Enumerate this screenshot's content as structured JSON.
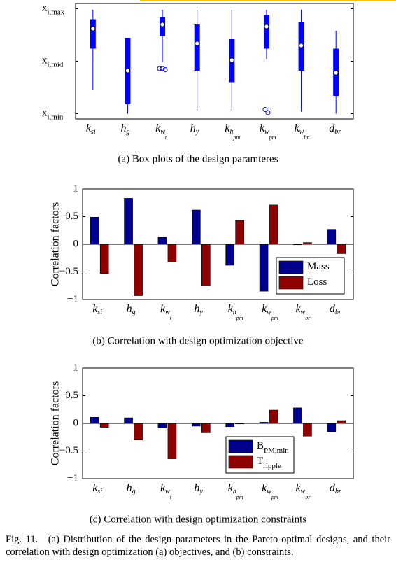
{
  "chart_data": [
    {
      "type": "box",
      "categories": [
        "k",
        "h",
        "k",
        "h",
        "k",
        "k",
        "k",
        "d"
      ],
      "category_subscripts": [
        "si",
        "g",
        "w",
        "y",
        "h",
        "w",
        "w",
        "br"
      ],
      "category_subsubscripts": [
        null,
        null,
        "t",
        null,
        "pm",
        "pm",
        "br",
        null
      ],
      "caption": "(a) Box plots of the design paramteres",
      "color": "#0000ff",
      "boxes": [
        {
          "whislo": 0.23,
          "q1": 0.62,
          "med": 0.81,
          "q3": 0.9,
          "whishi": 0.99,
          "fliers": []
        },
        {
          "whislo": 0,
          "q1": 0.09,
          "med": 0.41,
          "q3": 0.72,
          "whishi": 0.72,
          "fliers": []
        },
        {
          "whislo": 0.49,
          "q1": 0.74,
          "med": 0.85,
          "q3": 0.92,
          "whishi": 0.99,
          "fliers": [
            0.43,
            0.43,
            0.42
          ]
        },
        {
          "whislo": 0.03,
          "q1": 0.41,
          "med": 0.67,
          "q3": 0.85,
          "whishi": 0.99,
          "fliers": []
        },
        {
          "whislo": 0.03,
          "q1": 0.3,
          "med": 0.51,
          "q3": 0.71,
          "whishi": 0.99,
          "fliers": []
        },
        {
          "whislo": 0.52,
          "q1": 0.62,
          "med": 0.83,
          "q3": 0.94,
          "whishi": 0.99,
          "fliers": [
            0.04,
            0.01
          ]
        },
        {
          "whislo": 0.02,
          "q1": 0.41,
          "med": 0.65,
          "q3": 0.87,
          "whishi": 0.99,
          "fliers": []
        },
        {
          "whislo": 0,
          "q1": 0.17,
          "med": 0.39,
          "q3": 0.62,
          "whishi": 0.79,
          "fliers": []
        }
      ],
      "ylim": [
        -0.05,
        1.05
      ],
      "yticks": [
        {
          "value": 0,
          "label": "x"
        },
        {
          "value": 0.5,
          "label": "x"
        },
        {
          "value": 1,
          "label": "x"
        }
      ],
      "ytick_subscripts": [
        "i,min",
        "i,mid",
        "i,max"
      ]
    },
    {
      "type": "bar",
      "categories": [
        "k",
        "h",
        "k",
        "h",
        "k",
        "k",
        "k",
        "d"
      ],
      "category_subscripts": [
        "si",
        "g",
        "w",
        "y",
        "h",
        "w",
        "w",
        "br"
      ],
      "category_subsubscripts": [
        null,
        null,
        "t",
        null,
        "pm",
        "pm",
        "br",
        null
      ],
      "caption": "(b) Correlation with design optimization objective",
      "y_label": "Correlation factors",
      "series": [
        {
          "name": "Mass",
          "color": "#00008f",
          "values": [
            0.49,
            0.83,
            0.13,
            0.62,
            -0.38,
            -0.85,
            -0.01,
            0.27
          ]
        },
        {
          "name": "Loss",
          "color": "#8f0000",
          "values": [
            -0.53,
            -0.93,
            -0.32,
            -0.75,
            0.43,
            0.71,
            0.03,
            -0.17
          ]
        }
      ],
      "ylim": [
        -1,
        1
      ],
      "yticks": [
        {
          "value": -1,
          "label": "−1"
        },
        {
          "value": -0.5,
          "label": "−0.5"
        },
        0,
        0.5,
        1
      ],
      "legend": "lower right"
    },
    {
      "type": "bar",
      "categories": [
        "k",
        "h",
        "k",
        "h",
        "k",
        "k",
        "k",
        "d"
      ],
      "category_subscripts": [
        "si",
        "g",
        "w",
        "y",
        "h",
        "w",
        "w",
        "br"
      ],
      "category_subsubscripts": [
        null,
        null,
        "t",
        null,
        "pm",
        "pm",
        "br",
        null
      ],
      "caption": "(c) Correlation with design optimization constraints",
      "y_label": "Correlation factors",
      "series": [
        {
          "name": "B",
          "name_sub": "PM,min",
          "color": "#00008f",
          "values": [
            0.11,
            0.1,
            -0.08,
            -0.05,
            -0.06,
            0.02,
            0.28,
            -0.15
          ]
        },
        {
          "name": "T",
          "name_sub": "ripple",
          "color": "#8f0000",
          "values": [
            -0.07,
            -0.3,
            -0.64,
            -0.17,
            -0.01,
            0.24,
            -0.23,
            0.05
          ]
        }
      ],
      "ylim": [
        -1,
        1
      ],
      "yticks": [
        {
          "value": -1,
          "label": "−1"
        },
        {
          "value": -0.5,
          "label": "−0.5"
        },
        0,
        0.5,
        1
      ],
      "legend": "lower center"
    }
  ],
  "figure_caption": "Fig. 11. (a) Distribution of the design parameters in the Pareto-optimal designs, and their correlation with design optimization (a) objectives, and (b) constraints."
}
